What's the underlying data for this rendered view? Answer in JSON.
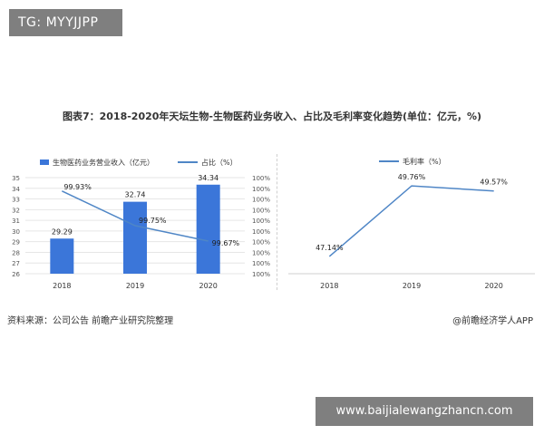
{
  "badge": "TG: MYYJJPP",
  "figure_title": "图表7：2018-2020年天坛生物-生物医药业务收入、占比及毛利率变化趋势(单位：亿元，%)",
  "source": "资料来源：公司公告 前瞻产业研究院整理",
  "brand": "@前瞻经济学人APP",
  "url_banner": "www.baijialewangzhancn.com",
  "colors": {
    "bar": "#3b76d9",
    "line": "#4f86c6",
    "grid": "#e6e6e6"
  },
  "chart_data": [
    {
      "type": "bar",
      "categories": [
        "2018",
        "2019",
        "2020"
      ],
      "series": [
        {
          "name": "生物医药业务营业收入（亿元）",
          "values": [
            29.29,
            32.74,
            34.34
          ],
          "labels": [
            "29.29",
            "32.74",
            "34.34"
          ],
          "axis": "left"
        },
        {
          "name": "占比（%）",
          "values": [
            99.93,
            99.75,
            99.67
          ],
          "labels": [
            "99.93%",
            "99.75%",
            "99.67%"
          ],
          "axis": "right",
          "render": "line"
        }
      ],
      "y_left_ticks": [
        "35",
        "34",
        "33",
        "32",
        "31",
        "30",
        "29",
        "28",
        "27",
        "26"
      ],
      "y_right_ticks": [
        "100%",
        "100%",
        "100%",
        "100%",
        "100%",
        "100%",
        "100%",
        "100%",
        "100%",
        "100%"
      ],
      "ylim_left": [
        26,
        35
      ],
      "ylim_right": [
        99.5,
        100.0
      ]
    },
    {
      "type": "line",
      "categories": [
        "2018",
        "2019",
        "2020"
      ],
      "series": [
        {
          "name": "毛利率（%）",
          "values": [
            47.14,
            49.76,
            49.57
          ],
          "labels": [
            "47.14%",
            "49.76%",
            "49.57%"
          ]
        }
      ],
      "ylim": [
        46.5,
        50.2
      ]
    }
  ]
}
